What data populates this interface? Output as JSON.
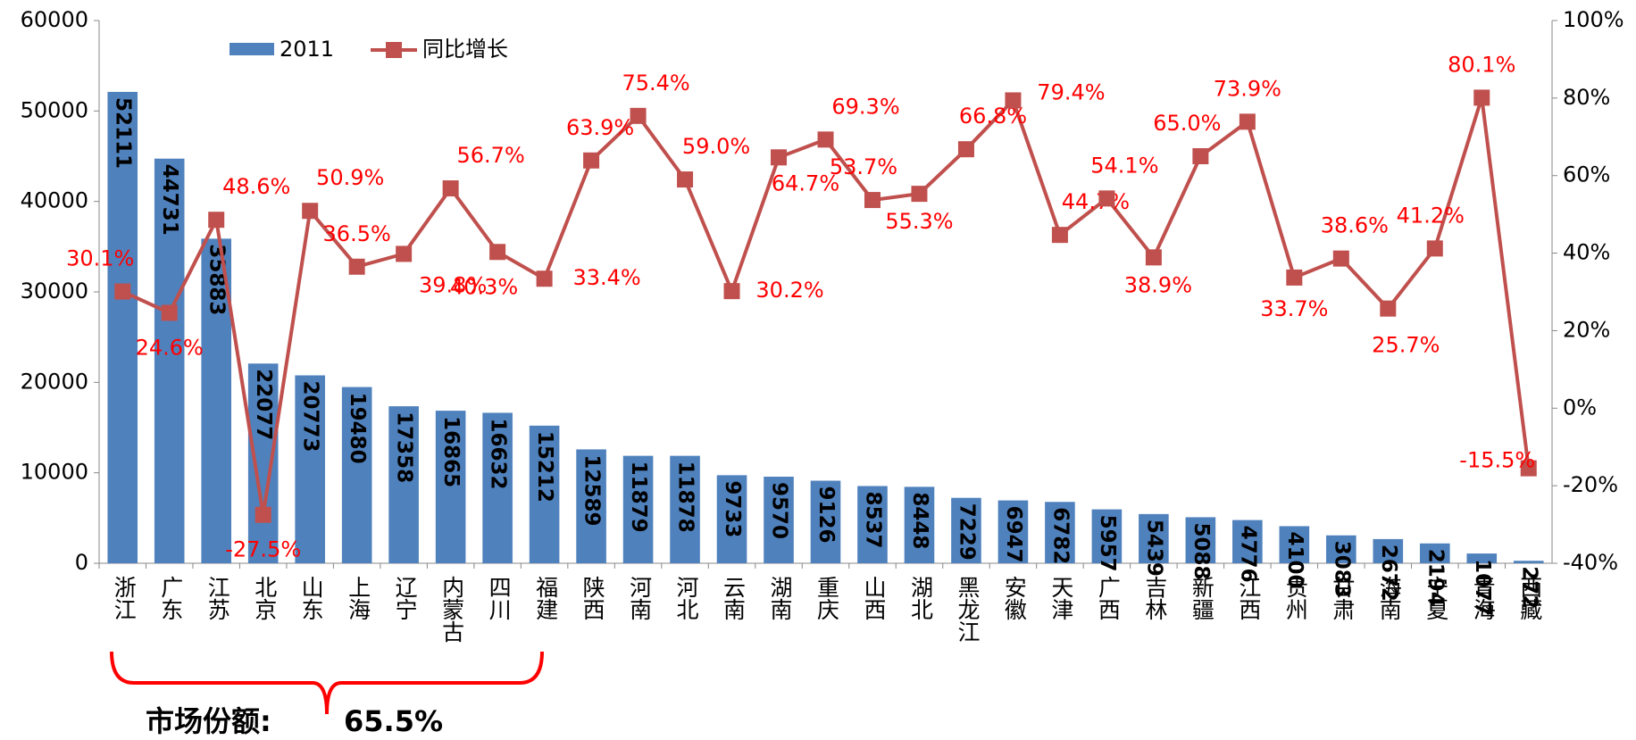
{
  "chart_data": {
    "type": "bar",
    "categories": [
      "浙江",
      "广东",
      "江苏",
      "北京",
      "山东",
      "上海",
      "辽宁",
      "内蒙古",
      "四川",
      "福建",
      "陕西",
      "河南",
      "河北",
      "云南",
      "湖南",
      "重庆",
      "山西",
      "湖北",
      "黑龙江",
      "安徽",
      "天津",
      "广西",
      "吉林",
      "新疆",
      "江西",
      "贵州",
      "甘肃",
      "海南",
      "宁夏",
      "青海",
      "西藏"
    ],
    "series": [
      {
        "name": "2011",
        "type": "bar",
        "color": "#4f81bd",
        "values": [
          52111,
          44731,
          35883,
          22077,
          20773,
          19480,
          17358,
          16865,
          16632,
          15212,
          12589,
          11879,
          11878,
          9733,
          9570,
          9126,
          8537,
          8448,
          7229,
          6947,
          6782,
          5957,
          5439,
          5088,
          4776,
          4100,
          3083,
          2672,
          2194,
          1077,
          272
        ]
      },
      {
        "name": "同比增长",
        "type": "line",
        "axis": "y2",
        "color": "#c0504d",
        "values": [
          30.1,
          24.6,
          48.6,
          -27.5,
          50.9,
          36.5,
          39.8,
          56.7,
          40.3,
          33.4,
          63.9,
          75.4,
          59.0,
          30.2,
          64.7,
          69.3,
          53.7,
          55.3,
          66.8,
          79.4,
          44.7,
          54.1,
          38.9,
          65.0,
          73.9,
          33.7,
          38.6,
          25.7,
          41.2,
          80.1,
          -15.5
        ],
        "value_labels": [
          "30.1%",
          "24.6%",
          "48.6%",
          "-27.5%",
          "50.9%",
          "36.5%",
          "39.8%",
          "56.7%",
          "40.3%",
          "33.4%",
          "63.9%",
          "75.4%",
          "59.0%",
          "30.2%",
          "64.7%",
          "69.3%",
          "53.7%",
          "55.3%",
          "66.8%",
          "79.4%",
          "44.7%",
          "54.1%",
          "38.9%",
          "65.0%",
          "73.9%",
          "33.7%",
          "38.6%",
          "25.7%",
          "41.2%",
          "80.1%",
          "-15.5%"
        ]
      }
    ],
    "ylim": [
      0,
      60000
    ],
    "yticks": [
      0,
      10000,
      20000,
      30000,
      40000,
      50000,
      60000
    ],
    "y2lim": [
      -40,
      100
    ],
    "y2ticks": [
      {
        "value": -40,
        "label": "-40%"
      },
      {
        "value": -20,
        "label": "-20%"
      },
      {
        "value": 0,
        "label": "0%"
      },
      {
        "value": 20,
        "label": "20%"
      },
      {
        "value": 40,
        "label": "40%"
      },
      {
        "value": 60,
        "label": "60%"
      },
      {
        "value": 80,
        "label": "80%"
      },
      {
        "value": 100,
        "label": "100%"
      }
    ],
    "legend": "top-left",
    "annotations": [
      "市场份额:",
      "65.5%"
    ]
  }
}
